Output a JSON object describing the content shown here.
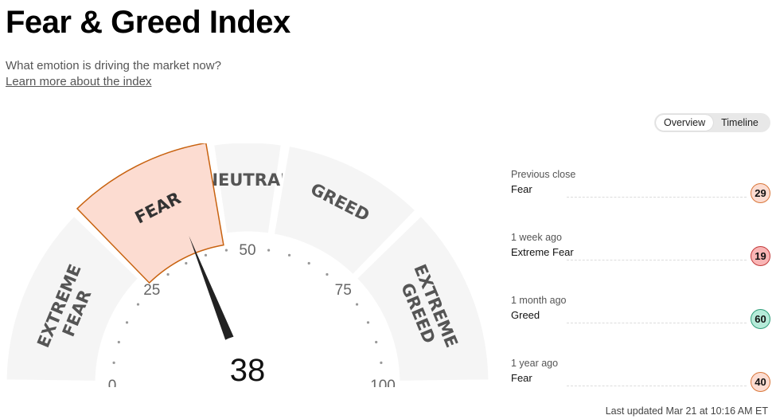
{
  "header": {
    "title": "Fear & Greed Index",
    "subtitle": "What emotion is driving the market now?",
    "learn_more": "Learn more about the index"
  },
  "toggle": {
    "overview": "Overview",
    "timeline": "Timeline",
    "active": "overview"
  },
  "gauge": {
    "value": 38,
    "value_label": "38",
    "segments": [
      {
        "lines": [
          "EXTREME",
          "FEAR"
        ],
        "from": 0,
        "to": 25
      },
      {
        "lines": [
          "FEAR"
        ],
        "from": 25,
        "to": 45
      },
      {
        "lines": [
          "NEUTRAL"
        ],
        "from": 45,
        "to": 55
      },
      {
        "lines": [
          "GREED"
        ],
        "from": 55,
        "to": 75
      },
      {
        "lines": [
          "EXTREME",
          "GREED"
        ],
        "from": 75,
        "to": 100
      }
    ],
    "active_segment": 1,
    "tick_labels": [
      "0",
      "25",
      "50",
      "75",
      "100"
    ],
    "colors": {
      "segment": "#f5f5f5",
      "active_fill": "#fcdcd1",
      "active_stroke": "#c8620f",
      "label": "#555555",
      "needle": "#222222"
    }
  },
  "history": [
    {
      "label": "Previous close",
      "rating": "Fear",
      "value": "29",
      "bg": "#fcdcd1",
      "border": "#d9773a"
    },
    {
      "label": "1 week ago",
      "rating": "Extreme Fear",
      "value": "19",
      "bg": "#f9b5b5",
      "border": "#c23a3a"
    },
    {
      "label": "1 month ago",
      "rating": "Greed",
      "value": "60",
      "bg": "#b6ebd9",
      "border": "#2f9e79"
    },
    {
      "label": "1 year ago",
      "rating": "Fear",
      "value": "40",
      "bg": "#fcdcd1",
      "border": "#d9773a"
    }
  ],
  "last_updated": "Last updated Mar 21 at 10:16 AM ET"
}
